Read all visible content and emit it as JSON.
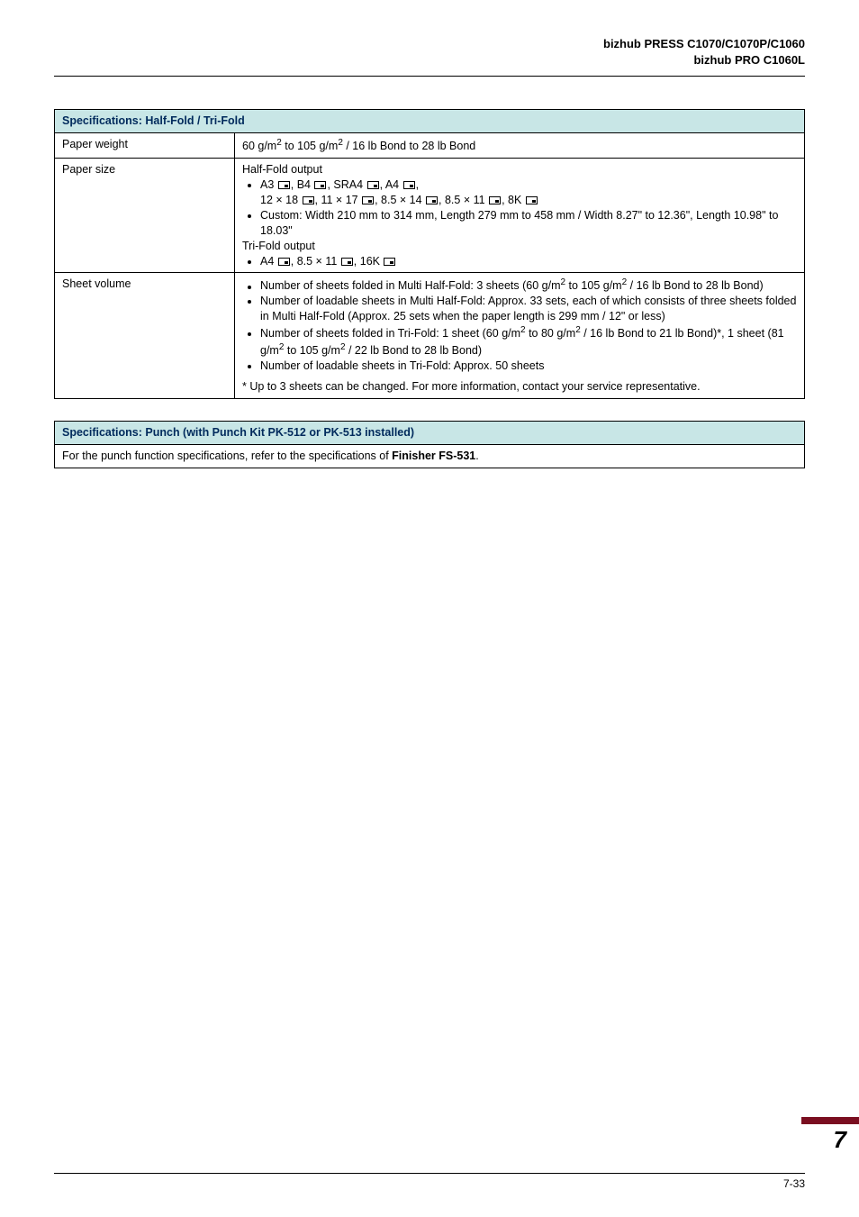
{
  "header": {
    "line1": "bizhub PRESS C1070/C1070P/C1060",
    "line2": "bizhub PRO C1060L"
  },
  "tables": {
    "halfFold": {
      "title": "Specifications: Half-Fold / Tri-Fold",
      "titleBg": "#c8e6e6",
      "titleColor": "#002a5c",
      "rows": {
        "paperWeight": {
          "label": "Paper weight",
          "value": "60 g/m² to 105 g/m² / 16 lb Bond to 28 lb Bond"
        },
        "paperSize": {
          "label": "Paper size",
          "halfFoldOutput": "Half-Fold output",
          "triFoldOutput": "Tri-Fold output",
          "halfLine1": "A3 ⬚, B4 ⬚, SRA4 ⬚, A4 ⬚,",
          "halfLine2": "12 × 18 ⬚, 11 × 17 ⬚, 8.5 × 14 ⬚, 8.5 × 11 ⬚, 8K ⬚",
          "halfCustom": "Custom: Width 210 mm to 314 mm, Length 279 mm to 458 mm / Width 8.27\" to 12.36\", Length 10.98\" to 18.03\"",
          "triLine1": "A4 ⬚, 8.5 × 11 ⬚, 16K ⬚"
        },
        "sheetVolume": {
          "label": "Sheet volume",
          "b1": "Number of sheets folded in Multi Half-Fold: 3 sheets (60 g/m² to 105 g/m² / 16 lb Bond to 28 lb Bond)",
          "b2": "Number of loadable sheets in Multi Half-Fold: Approx. 33 sets, each of which consists of three sheets folded in Multi Half-Fold (Approx. 25 sets when the paper length is 299 mm / 12\" or less)",
          "b3": "Number of sheets folded in Tri-Fold: 1 sheet (60 g/m² to 80 g/m² / 16 lb Bond to 21 lb Bond)*, 1 sheet (81 g/m² to 105 g/m² / 22 lb Bond to 28 lb Bond)",
          "b4": "Number of loadable sheets in Tri-Fold: Approx. 50 sheets",
          "note": "* Up to 3 sheets can be changed. For more information, contact your service representative."
        }
      }
    },
    "punch": {
      "title": "Specifications: Punch (with Punch Kit PK-512 or PK-513 installed)",
      "bodyPrefix": "For the punch function specifications, refer to the specifications of ",
      "bodyBold": "Finisher FS-531",
      "bodySuffix": "."
    }
  },
  "chapterNumber": "7",
  "pageNumber": "7-33",
  "colors": {
    "chapterBar": "#7a0e20"
  }
}
